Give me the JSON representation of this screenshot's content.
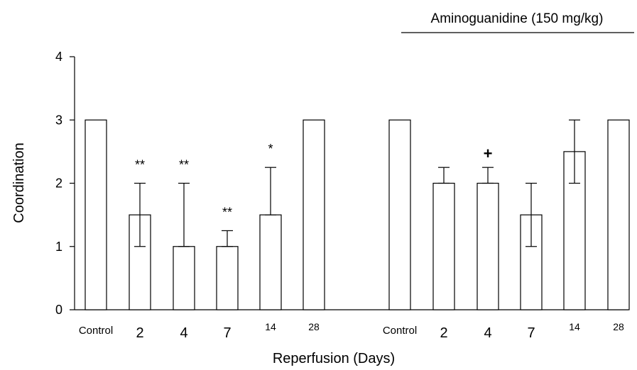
{
  "chart_data": {
    "type": "bar",
    "header_text": "Aminoguanidine (150 mg/kg)",
    "xlabel": "Reperfusion (Days)",
    "ylabel": "Coordination",
    "ylim": [
      0,
      4
    ],
    "yticks": [
      0,
      1,
      2,
      3,
      4
    ],
    "grid": false,
    "groups": [
      {
        "name": "",
        "categories": [
          "Control",
          "2",
          "4",
          "7",
          "14",
          "28"
        ],
        "values": [
          3,
          1.5,
          1,
          1,
          1.5,
          3
        ],
        "error_low": [
          3,
          1,
          1,
          1,
          1.5,
          3
        ],
        "error_high": [
          3,
          2,
          2,
          1.25,
          2.25,
          3
        ],
        "significance": [
          "",
          "**",
          "**",
          "**",
          "*",
          ""
        ]
      },
      {
        "name": "",
        "categories": [
          "Control",
          "2",
          "4",
          "7",
          "14",
          "28"
        ],
        "values": [
          3,
          2,
          2,
          1.5,
          2.5,
          3
        ],
        "error_low": [
          3,
          2,
          2,
          1,
          2,
          3
        ],
        "error_high": [
          3,
          2.25,
          2.25,
          2,
          3,
          3
        ],
        "significance": [
          "",
          "",
          "+",
          "",
          "",
          ""
        ]
      }
    ]
  }
}
